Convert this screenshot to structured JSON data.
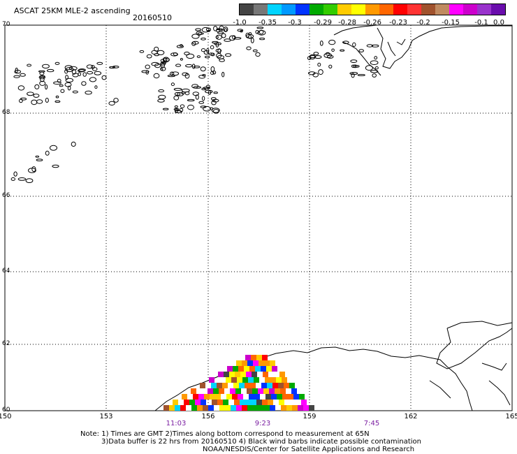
{
  "header": {
    "title": "ASCAT 25KM MLE-2 ascending",
    "date": "20160510"
  },
  "colorbar": {
    "colors": [
      "#444444",
      "#777777",
      "#00d4ff",
      "#0099ff",
      "#0033ff",
      "#00aa00",
      "#33cc00",
      "#ffcc00",
      "#ffff00",
      "#ff9900",
      "#ff6600",
      "#ff0000",
      "#ff3333",
      "#a0522d",
      "#c08a60",
      "#ff00ff",
      "#cc00cc",
      "#9933cc",
      "#6a0dad"
    ],
    "ticks": [
      "-1.0",
      "-0.35",
      "-0.3",
      "-0.29",
      "-0.28",
      "-0.26",
      "-0.23",
      "-0.2",
      "-0.15",
      "-0.1",
      "0.0"
    ]
  },
  "map": {
    "lat_labels": [
      "70",
      "68",
      "66",
      "64",
      "62",
      "60"
    ],
    "lon_labels": [
      "150",
      "153",
      "156",
      "159",
      "162",
      "165"
    ],
    "times": [
      "11:03",
      "9:23",
      "7:45"
    ]
  },
  "notes": [
    "Note: 1) Times are GMT 2)Times along bottom correspond to measurement at 65N",
    "3)Data buffer is 22 hrs from 20160510 4) Black wind barbs indicate possible contamination",
    "NOAA/NESDIS/Center for Satellite Applications and Research"
  ]
}
